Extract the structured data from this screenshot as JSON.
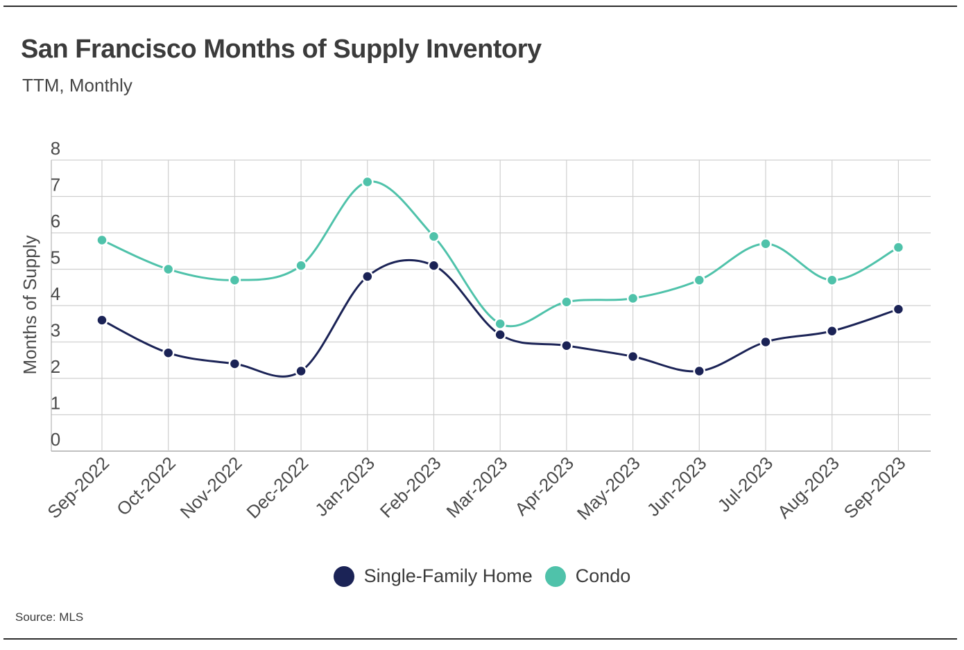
{
  "chart_data": {
    "type": "line",
    "title": "San Francisco Months of Supply Inventory",
    "subtitle": "TTM, Monthly",
    "ylabel": "Months of Supply",
    "xlabel": "",
    "ylim": [
      0,
      8
    ],
    "yticks": [
      "0",
      "1",
      "2",
      "3",
      "4",
      "5",
      "6",
      "7",
      "8"
    ],
    "categories": [
      "Sep-2022",
      "Oct-2022",
      "Nov-2022",
      "Dec-2022",
      "Jan-2023",
      "Feb-2023",
      "Mar-2023",
      "Apr-2023",
      "May-2023",
      "Jun-2023",
      "Jul-2023",
      "Aug-2023",
      "Sep-2023"
    ],
    "series": [
      {
        "name": "Single-Family Home",
        "color": "#1b2356",
        "values": [
          3.6,
          2.7,
          2.4,
          2.2,
          4.8,
          5.1,
          3.2,
          2.9,
          2.6,
          2.2,
          3.0,
          3.3,
          3.9
        ]
      },
      {
        "name": "Condo",
        "color": "#4fc2aa",
        "values": [
          5.8,
          5.0,
          4.7,
          5.1,
          7.4,
          5.9,
          3.5,
          4.1,
          4.2,
          4.7,
          5.7,
          4.7,
          5.6
        ]
      }
    ],
    "grid": true,
    "legend": "bottom-center",
    "source": "Source:  MLS"
  }
}
